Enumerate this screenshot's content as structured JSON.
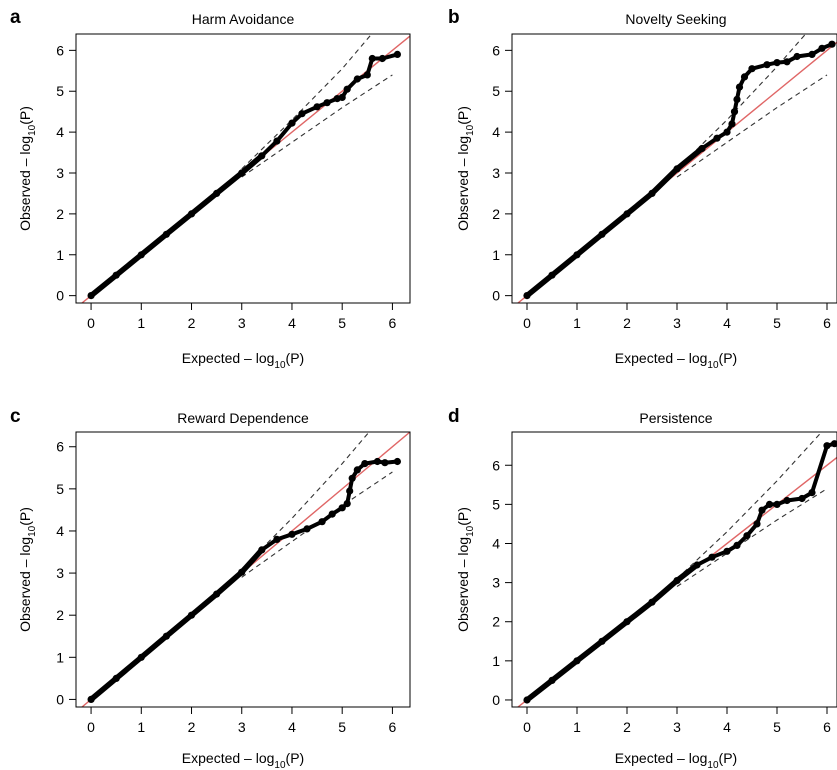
{
  "chart_data": [
    {
      "panel": "a",
      "type": "scatter",
      "title": "Harm Avoidance",
      "xlabel": "Expected – log",
      "xlabel_sub": "10",
      "xlabel_tail": "(P)",
      "ylabel": "Observed – log",
      "ylabel_sub": "10",
      "ylabel_tail": "(P)",
      "xticks": [
        0,
        1,
        2,
        3,
        4,
        5,
        6
      ],
      "yticks": [
        0,
        1,
        2,
        3,
        4,
        5,
        6
      ],
      "xlim": [
        -0.3,
        6.35
      ],
      "ylim": [
        -0.18,
        6.4
      ],
      "reference_line_color": "#e06666",
      "point_color": "#000000",
      "points": [
        [
          0,
          0
        ],
        [
          0.5,
          0.5
        ],
        [
          1,
          1
        ],
        [
          1.5,
          1.5
        ],
        [
          2,
          2
        ],
        [
          2.5,
          2.5
        ],
        [
          3,
          3
        ],
        [
          3.4,
          3.42
        ],
        [
          3.7,
          3.78
        ],
        [
          4.0,
          4.22
        ],
        [
          4.2,
          4.45
        ],
        [
          4.5,
          4.62
        ],
        [
          4.7,
          4.72
        ],
        [
          4.9,
          4.82
        ],
        [
          5.0,
          4.85
        ],
        [
          5.1,
          5.05
        ],
        [
          5.3,
          5.3
        ],
        [
          5.5,
          5.4
        ],
        [
          5.6,
          5.8
        ],
        [
          5.8,
          5.8
        ],
        [
          6.1,
          5.9
        ]
      ],
      "confidence_upper": [
        [
          3,
          3.1
        ],
        [
          4,
          4.3
        ],
        [
          5,
          5.55
        ],
        [
          6,
          7.0
        ]
      ],
      "confidence_lower": [
        [
          3,
          2.9
        ],
        [
          4,
          3.75
        ],
        [
          5,
          4.6
        ],
        [
          6,
          5.4
        ]
      ]
    },
    {
      "panel": "b",
      "type": "scatter",
      "title": "Novelty Seeking",
      "xlabel": "Expected – log",
      "xlabel_sub": "10",
      "xlabel_tail": "(P)",
      "ylabel": "Observed – log",
      "ylabel_sub": "10",
      "ylabel_tail": "(P)",
      "xticks": [
        0,
        1,
        2,
        3,
        4,
        5,
        6
      ],
      "yticks": [
        0,
        1,
        2,
        3,
        4,
        5,
        6
      ],
      "xlim": [
        -0.3,
        6.2
      ],
      "ylim": [
        -0.18,
        6.4
      ],
      "reference_line_color": "#e06666",
      "point_color": "#000000",
      "points": [
        [
          0,
          0
        ],
        [
          0.5,
          0.5
        ],
        [
          1,
          1
        ],
        [
          1.5,
          1.5
        ],
        [
          2,
          2
        ],
        [
          2.5,
          2.5
        ],
        [
          3,
          3.1
        ],
        [
          3.5,
          3.6
        ],
        [
          3.8,
          3.85
        ],
        [
          4.0,
          4.0
        ],
        [
          4.1,
          4.2
        ],
        [
          4.15,
          4.5
        ],
        [
          4.2,
          4.8
        ],
        [
          4.25,
          5.1
        ],
        [
          4.35,
          5.35
        ],
        [
          4.5,
          5.55
        ],
        [
          4.8,
          5.65
        ],
        [
          5.0,
          5.7
        ],
        [
          5.2,
          5.72
        ],
        [
          5.4,
          5.85
        ],
        [
          5.7,
          5.9
        ],
        [
          5.9,
          6.05
        ],
        [
          6.1,
          6.15
        ]
      ],
      "confidence_upper": [
        [
          3,
          3.1
        ],
        [
          4,
          4.3
        ],
        [
          5,
          5.6
        ],
        [
          6,
          7.0
        ]
      ],
      "confidence_lower": [
        [
          3,
          2.9
        ],
        [
          4,
          3.75
        ],
        [
          5,
          4.6
        ],
        [
          6,
          5.4
        ]
      ]
    },
    {
      "panel": "c",
      "type": "scatter",
      "title": "Reward Dependence",
      "xlabel": "Expected – log",
      "xlabel_sub": "10",
      "xlabel_tail": "(P)",
      "ylabel": "Observed – log",
      "ylabel_sub": "10",
      "ylabel_tail": "(P)",
      "xticks": [
        0,
        1,
        2,
        3,
        4,
        5,
        6
      ],
      "yticks": [
        0,
        1,
        2,
        3,
        4,
        5,
        6
      ],
      "xlim": [
        -0.3,
        6.35
      ],
      "ylim": [
        -0.18,
        6.35
      ],
      "reference_line_color": "#e06666",
      "point_color": "#000000",
      "points": [
        [
          0,
          0
        ],
        [
          0.5,
          0.5
        ],
        [
          1,
          1
        ],
        [
          1.5,
          1.5
        ],
        [
          2,
          2
        ],
        [
          2.5,
          2.5
        ],
        [
          3,
          3.02
        ],
        [
          3.4,
          3.55
        ],
        [
          3.7,
          3.8
        ],
        [
          4.0,
          3.92
        ],
        [
          4.3,
          4.05
        ],
        [
          4.6,
          4.22
        ],
        [
          4.8,
          4.4
        ],
        [
          5.0,
          4.55
        ],
        [
          5.1,
          4.65
        ],
        [
          5.15,
          4.95
        ],
        [
          5.2,
          5.25
        ],
        [
          5.3,
          5.45
        ],
        [
          5.45,
          5.6
        ],
        [
          5.7,
          5.65
        ],
        [
          5.85,
          5.62
        ],
        [
          6.1,
          5.65
        ]
      ],
      "confidence_upper": [
        [
          3,
          3.1
        ],
        [
          4,
          4.3
        ],
        [
          5,
          5.6
        ],
        [
          6,
          7.0
        ]
      ],
      "confidence_lower": [
        [
          3,
          2.9
        ],
        [
          4,
          3.75
        ],
        [
          5,
          4.6
        ],
        [
          6,
          5.4
        ]
      ]
    },
    {
      "panel": "d",
      "type": "scatter",
      "title": "Persistence",
      "xlabel": "Expected – log",
      "xlabel_sub": "10",
      "xlabel_tail": "(P)",
      "ylabel": "Observed – log",
      "ylabel_sub": "10",
      "ylabel_tail": "(P)",
      "xticks": [
        0,
        1,
        2,
        3,
        4,
        5,
        6
      ],
      "yticks": [
        0,
        1,
        2,
        3,
        4,
        5,
        6
      ],
      "xlim": [
        -0.3,
        6.2
      ],
      "ylim": [
        -0.18,
        6.85
      ],
      "reference_line_color": "#e06666",
      "point_color": "#000000",
      "points": [
        [
          0,
          0
        ],
        [
          0.5,
          0.5
        ],
        [
          1,
          1
        ],
        [
          1.5,
          1.5
        ],
        [
          2,
          2
        ],
        [
          2.5,
          2.5
        ],
        [
          3,
          3.05
        ],
        [
          3.4,
          3.45
        ],
        [
          3.7,
          3.65
        ],
        [
          4.0,
          3.8
        ],
        [
          4.2,
          3.95
        ],
        [
          4.4,
          4.2
        ],
        [
          4.6,
          4.5
        ],
        [
          4.7,
          4.85
        ],
        [
          4.85,
          5.0
        ],
        [
          5.0,
          5.0
        ],
        [
          5.2,
          5.1
        ],
        [
          5.5,
          5.15
        ],
        [
          5.7,
          5.3
        ],
        [
          6.0,
          6.5
        ],
        [
          6.15,
          6.55
        ]
      ],
      "confidence_upper": [
        [
          3,
          3.1
        ],
        [
          4,
          4.3
        ],
        [
          5,
          5.6
        ],
        [
          6,
          7.0
        ]
      ],
      "confidence_lower": [
        [
          3,
          2.9
        ],
        [
          4,
          3.75
        ],
        [
          5,
          4.6
        ],
        [
          6,
          5.4
        ]
      ]
    }
  ]
}
